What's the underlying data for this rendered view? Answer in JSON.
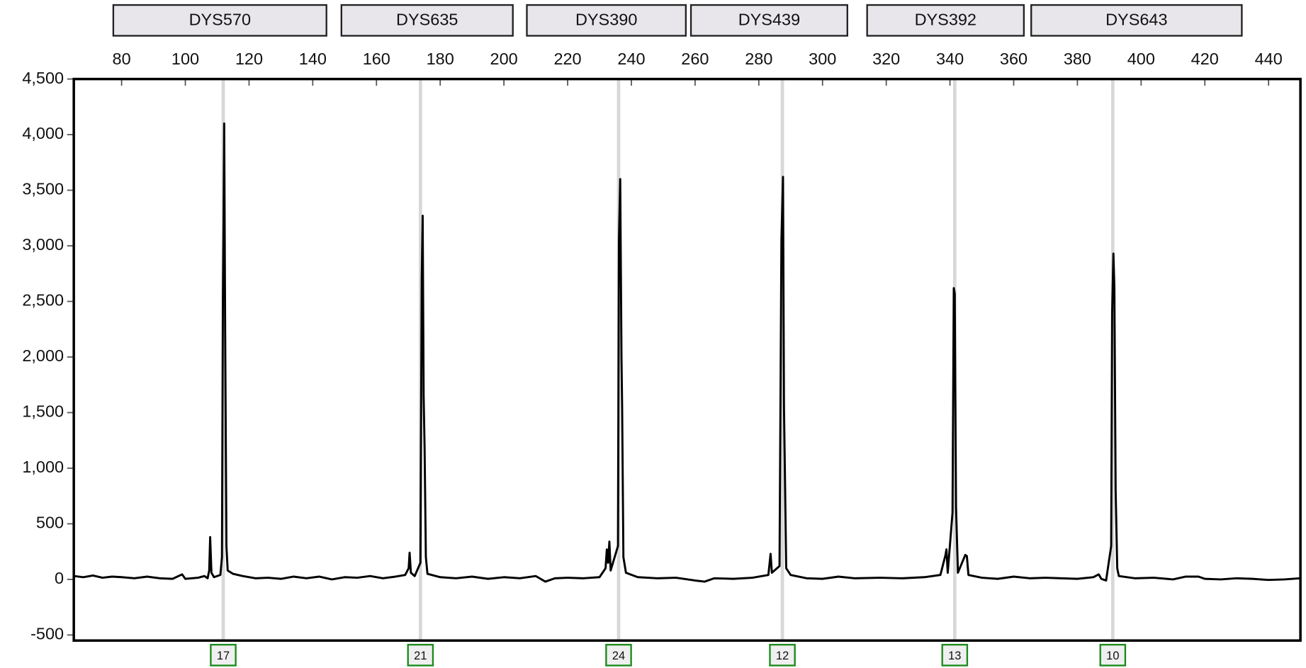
{
  "chart_data": {
    "type": "line",
    "xlim": [
      65,
      450
    ],
    "ylim": [
      -550,
      4500
    ],
    "xticks": [
      80,
      100,
      120,
      140,
      160,
      180,
      200,
      220,
      240,
      260,
      280,
      300,
      320,
      340,
      360,
      380,
      400,
      420,
      440
    ],
    "yticks": [
      {
        "value": 4500,
        "label": "4,500"
      },
      {
        "value": 4000,
        "label": "4,000"
      },
      {
        "value": 3500,
        "label": "3,500"
      },
      {
        "value": 3000,
        "label": "3,000"
      },
      {
        "value": 2500,
        "label": "2,500"
      },
      {
        "value": 2000,
        "label": "2,000"
      },
      {
        "value": 1500,
        "label": "1,500"
      },
      {
        "value": 1000,
        "label": "1,000"
      },
      500,
      0,
      -500
    ],
    "x": [
      65,
      68,
      71,
      74,
      77,
      80,
      84,
      88,
      92,
      96,
      99,
      100,
      104,
      106,
      107,
      107.5,
      107.8,
      108.2,
      109,
      111,
      111.5,
      111.8,
      112.0,
      112.2,
      112.5,
      112.9,
      113.3,
      115,
      118,
      122,
      126,
      130,
      134,
      138,
      142,
      146,
      150,
      154,
      158,
      162,
      166,
      169,
      170.1,
      170.4,
      170.8,
      172,
      173.8,
      174.2,
      174.5,
      174.8,
      175.1,
      175.5,
      176,
      180,
      185,
      190,
      195,
      200,
      205,
      210,
      213,
      216,
      220,
      225,
      230,
      231.9,
      232.3,
      232.7,
      233.1,
      233.5,
      235.8,
      236.1,
      236.5,
      236.9,
      237.1,
      237.5,
      238.3,
      242,
      248,
      254,
      260,
      263,
      266,
      272,
      278,
      283,
      283.7,
      284.1,
      286.5,
      287.1,
      287.6,
      287.9,
      288.1,
      288.6,
      290,
      295,
      300,
      305,
      310,
      318,
      325,
      332,
      337,
      338.6,
      338.9,
      339.3,
      340.8,
      341.2,
      341.5,
      341.9,
      342.5,
      344.8,
      345.3,
      345.8,
      350,
      355,
      360,
      365,
      370,
      375,
      380,
      385,
      386.7,
      387.5,
      389,
      390.6,
      390.9,
      391.3,
      391.6,
      392,
      392.5,
      393,
      398,
      404,
      410,
      414,
      418,
      420,
      425,
      430,
      435,
      440,
      445,
      450
    ],
    "series": [
      {
        "color": "#000000",
        "values": [
          30,
          20,
          35,
          15,
          25,
          20,
          10,
          25,
          10,
          5,
          45,
          5,
          15,
          30,
          10,
          80,
          380,
          60,
          20,
          40,
          200,
          2550,
          3200,
          4100,
          2250,
          300,
          80,
          50,
          30,
          10,
          15,
          5,
          25,
          10,
          25,
          0,
          20,
          15,
          30,
          10,
          25,
          40,
          100,
          240,
          60,
          30,
          150,
          2700,
          3270,
          1650,
          1180,
          200,
          50,
          20,
          10,
          25,
          5,
          20,
          10,
          30,
          -20,
          10,
          15,
          10,
          20,
          100,
          270,
          150,
          340,
          80,
          300,
          3050,
          3600,
          2000,
          1550,
          200,
          60,
          20,
          10,
          15,
          -10,
          -20,
          10,
          5,
          15,
          40,
          230,
          60,
          120,
          3050,
          3620,
          1550,
          1150,
          100,
          40,
          10,
          5,
          25,
          10,
          15,
          10,
          20,
          40,
          220,
          270,
          60,
          600,
          2620,
          2570,
          650,
          60,
          220,
          210,
          40,
          15,
          5,
          25,
          10,
          15,
          10,
          5,
          20,
          45,
          5,
          -10,
          300,
          2400,
          2930,
          2630,
          800,
          100,
          30,
          10,
          15,
          0,
          25,
          25,
          5,
          0,
          10,
          5,
          -5,
          0,
          10
        ]
      }
    ],
    "loci": [
      {
        "name": "DYS570",
        "start": 77.4,
        "end": 144.3,
        "peak": 111.9,
        "allele": "17"
      },
      {
        "name": "DYS635",
        "start": 149,
        "end": 202.8,
        "peak": 173.8,
        "allele": "21"
      },
      {
        "name": "DYS390",
        "start": 207.2,
        "end": 257.1,
        "peak": 236,
        "allele": "24"
      },
      {
        "name": "DYS439",
        "start": 258.7,
        "end": 307.8,
        "peak": 287.4,
        "allele": "12"
      },
      {
        "name": "DYS392",
        "start": 314,
        "end": 363.2,
        "peak": 341.5,
        "allele": "13"
      },
      {
        "name": "DYS643",
        "start": 365.5,
        "end": 431.6,
        "peak": 391.1,
        "allele": "10"
      }
    ]
  }
}
